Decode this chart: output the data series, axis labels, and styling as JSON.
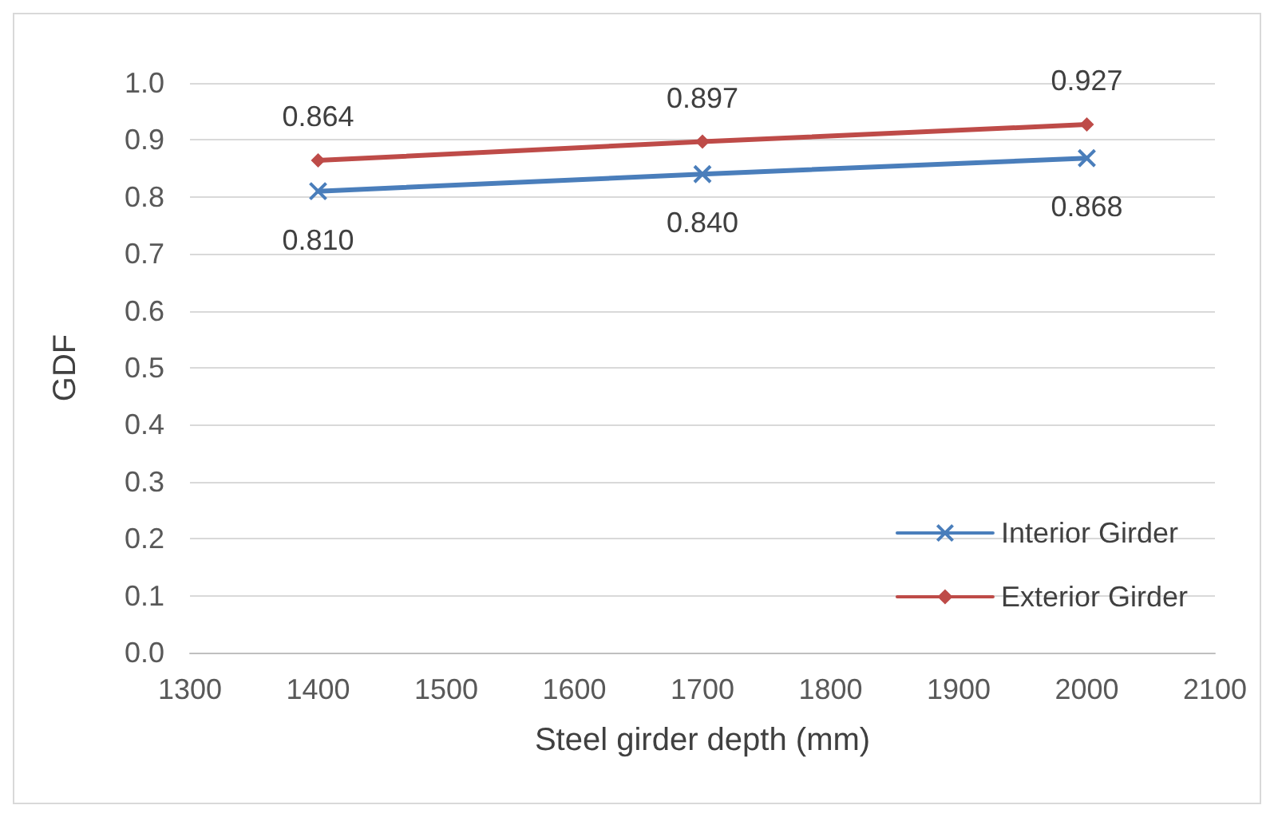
{
  "chart_data": {
    "type": "line",
    "xlabel": "Steel girder depth (mm)",
    "ylabel": "GDF",
    "x": [
      1400,
      1700,
      2000
    ],
    "series": [
      {
        "name": "Interior Girder",
        "color": "#4a7ebb",
        "marker": "cross",
        "values": [
          0.81,
          0.84,
          0.868
        ],
        "value_labels": [
          "0.810",
          "0.840",
          "0.868"
        ]
      },
      {
        "name": "Exterior Girder",
        "color": "#be4b48",
        "marker": "diamond",
        "values": [
          0.864,
          0.897,
          0.927
        ],
        "value_labels": [
          "0.864",
          "0.897",
          "0.927"
        ]
      }
    ],
    "xlim": [
      1300,
      2100
    ],
    "xticks": [
      1300,
      1400,
      1500,
      1600,
      1700,
      1800,
      1900,
      2000,
      2100
    ],
    "ylim": [
      0,
      1
    ],
    "yticks": [
      {
        "value": 0,
        "label": "0.0"
      },
      {
        "value": 0.1,
        "label": "0.1"
      },
      {
        "value": 0.2,
        "label": "0.2"
      },
      {
        "value": 0.3,
        "label": "0.3"
      },
      {
        "value": 0.4,
        "label": "0.4"
      },
      {
        "value": 0.5,
        "label": "0.5"
      },
      {
        "value": 0.6,
        "label": "0.6"
      },
      {
        "value": 0.7,
        "label": "0.7"
      },
      {
        "value": 0.8,
        "label": "0.8"
      },
      {
        "value": 0.9,
        "label": "0.9"
      },
      {
        "value": 1,
        "label": "1.0"
      }
    ],
    "grid": "y",
    "legend": "bottom right",
    "line_style": "solid"
  }
}
